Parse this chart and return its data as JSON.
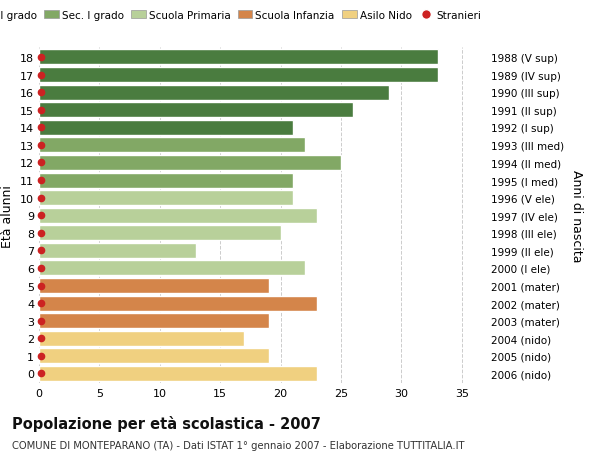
{
  "ages": [
    18,
    17,
    16,
    15,
    14,
    13,
    12,
    11,
    10,
    9,
    8,
    7,
    6,
    5,
    4,
    3,
    2,
    1,
    0
  ],
  "values": [
    33,
    33,
    29,
    26,
    21,
    22,
    25,
    21,
    21,
    23,
    20,
    13,
    22,
    19,
    23,
    19,
    17,
    19,
    23
  ],
  "right_labels": [
    "1988 (V sup)",
    "1989 (IV sup)",
    "1990 (III sup)",
    "1991 (II sup)",
    "1992 (I sup)",
    "1993 (III med)",
    "1994 (II med)",
    "1995 (I med)",
    "1996 (V ele)",
    "1997 (IV ele)",
    "1998 (III ele)",
    "1999 (II ele)",
    "2000 (I ele)",
    "2001 (mater)",
    "2002 (mater)",
    "2003 (mater)",
    "2004 (nido)",
    "2005 (nido)",
    "2006 (nido)"
  ],
  "bar_colors": [
    "#4a7c3f",
    "#4a7c3f",
    "#4a7c3f",
    "#4a7c3f",
    "#4a7c3f",
    "#82a865",
    "#82a865",
    "#82a865",
    "#b8d09a",
    "#b8d09a",
    "#b8d09a",
    "#b8d09a",
    "#b8d09a",
    "#d4854a",
    "#d4854a",
    "#d4854a",
    "#f0d080",
    "#f0d080",
    "#f0d080"
  ],
  "legend_labels": [
    "Sec. II grado",
    "Sec. I grado",
    "Scuola Primaria",
    "Scuola Infanzia",
    "Asilo Nido",
    "Stranieri"
  ],
  "legend_colors": [
    "#4a7c3f",
    "#82a865",
    "#b8d09a",
    "#d4854a",
    "#f0d080",
    "#cc2222"
  ],
  "title": "Popolazione per età scolastica - 2007",
  "subtitle": "COMUNE DI MONTEPARANO (TA) - Dati ISTAT 1° gennaio 2007 - Elaborazione TUTTITALIA.IT",
  "ylabel_left": "Età alunni",
  "ylabel_right": "Anni di nascita",
  "xlim": [
    0,
    37
  ],
  "bg_color": "#ffffff",
  "bar_edge_color": "#ffffff",
  "grid_color": "#cccccc",
  "stranieri_color": "#cc2222"
}
